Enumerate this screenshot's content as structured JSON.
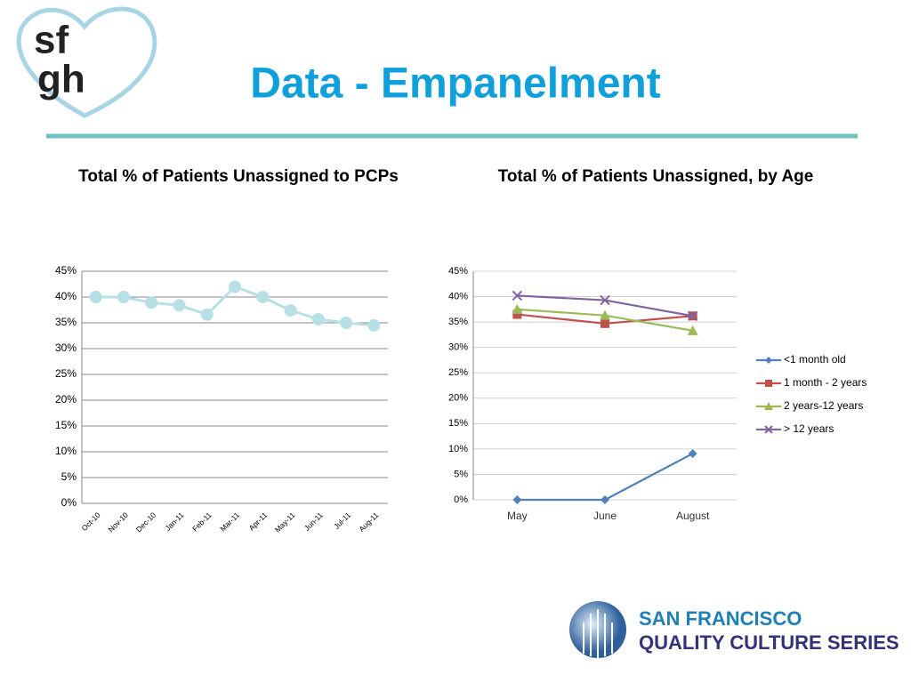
{
  "slide": {
    "title": "Data - Empanelment",
    "logo": [
      "sf",
      "gh"
    ],
    "footer": [
      "SAN FRANCISCO",
      "QUALITY CULTURE SERIES"
    ]
  },
  "chart_data": [
    {
      "type": "line",
      "title": "Total % of Patients Unassigned to PCPs",
      "categories": [
        "Oct-10",
        "Nov-10",
        "Dec-10",
        "Jan-11",
        "Feb-11",
        "Mar-11",
        "Apr-11",
        "May-11",
        "Jun-11",
        "Jul-11",
        "Aug-11"
      ],
      "values": [
        40,
        40,
        38.9,
        38.4,
        36.6,
        42,
        40,
        37.4,
        35.7,
        35,
        34.5
      ],
      "color": "#b7dfe6",
      "marker": "circle",
      "ylim": [
        0,
        45
      ],
      "yticks": [
        {
          "value": 0,
          "label": "0%"
        },
        {
          "value": 5,
          "label": "5%"
        },
        {
          "value": 10,
          "label": "10%"
        },
        {
          "value": 15,
          "label": "15%"
        },
        {
          "value": 20,
          "label": "20%"
        },
        {
          "value": 25,
          "label": "25%"
        },
        {
          "value": 30,
          "label": "30%"
        },
        {
          "value": 35,
          "label": "35%"
        },
        {
          "value": 40,
          "label": "40%"
        },
        {
          "value": 45,
          "label": "45%"
        }
      ],
      "grid": true
    },
    {
      "type": "line",
      "title": "Total % of Patients Unassigned, by Age",
      "categories": [
        "May",
        "June",
        "August"
      ],
      "series": [
        {
          "name": "<1 month old",
          "color": "#4f81bd",
          "marker": "diamond",
          "values": [
            0,
            0,
            9.1
          ]
        },
        {
          "name": "1 month - 2 years",
          "color": "#c0504d",
          "marker": "square",
          "values": [
            36.5,
            34.7,
            36.2
          ]
        },
        {
          "name": "2 years-12 years",
          "color": "#9bbb59",
          "marker": "triangle",
          "values": [
            37.5,
            36.3,
            33.3
          ]
        },
        {
          "name": "> 12 years",
          "color": "#8064a2",
          "marker": "x",
          "values": [
            40.2,
            39.3,
            36.2
          ]
        }
      ],
      "ylim": [
        0,
        45
      ],
      "yticks": [
        {
          "value": 0,
          "label": "0%"
        },
        {
          "value": 5,
          "label": "5%"
        },
        {
          "value": 10,
          "label": "10%"
        },
        {
          "value": 15,
          "label": "15%"
        },
        {
          "value": 20,
          "label": "20%"
        },
        {
          "value": 25,
          "label": "25%"
        },
        {
          "value": 30,
          "label": "30%"
        },
        {
          "value": 35,
          "label": "35%"
        },
        {
          "value": 40,
          "label": "40%"
        },
        {
          "value": 45,
          "label": "45%"
        }
      ],
      "grid": true,
      "legend": "right"
    }
  ]
}
